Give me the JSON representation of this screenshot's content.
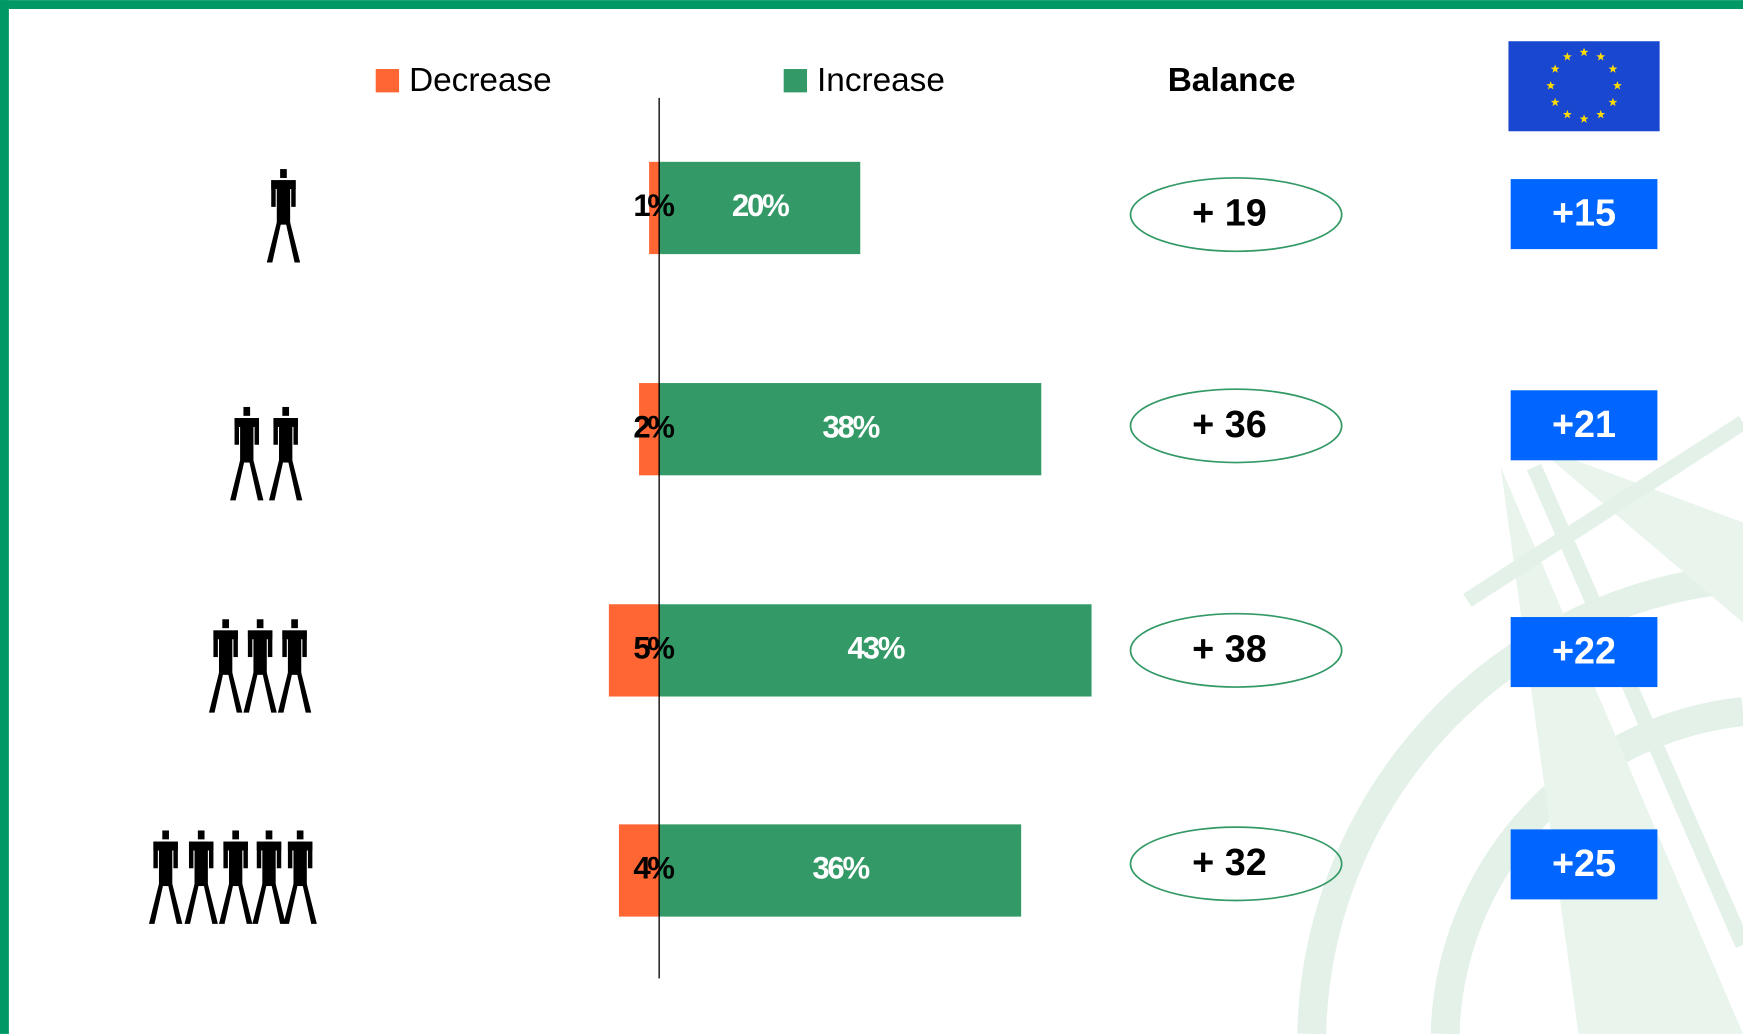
{
  "chart_data": {
    "type": "diverging-bar",
    "categories": [
      null,
      null,
      null,
      null
    ],
    "series": [
      {
        "name": "Decrease",
        "color": "#ff6633",
        "values": [
          1,
          2,
          5,
          4
        ],
        "value_labels": [
          "1%",
          "2%",
          "5%",
          "4%"
        ]
      },
      {
        "name": "Increase",
        "color": "#339966",
        "values": [
          20,
          38,
          43,
          36
        ],
        "value_labels": [
          "20%",
          "38%",
          "43%",
          "36%"
        ]
      }
    ],
    "xlim": [
      -6,
      44
    ],
    "balance": {
      "title": "Balance",
      "values": [
        19,
        36,
        38,
        32
      ],
      "value_labels": [
        "+ 19",
        "+ 36",
        "+ 38",
        "+ 32"
      ]
    },
    "eu": {
      "values": [
        15,
        21,
        22,
        25
      ],
      "value_labels": [
        "+15",
        "+21",
        "+22",
        "+25"
      ],
      "color": "#0066ff"
    }
  }
}
